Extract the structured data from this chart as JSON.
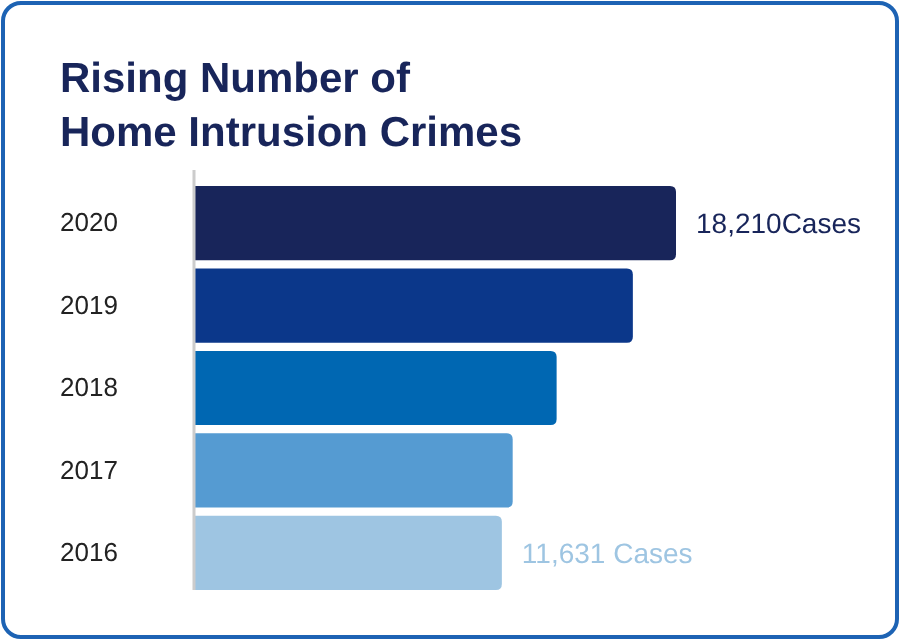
{
  "chart_data": {
    "type": "bar",
    "orientation": "horizontal",
    "title": "Rising Number of\nHome Intrusion Crimes",
    "categories": [
      "2020",
      "2019",
      "2018",
      "2017",
      "2016"
    ],
    "values": [
      18210,
      16580,
      13700,
      12040,
      11631
    ],
    "colors": [
      "#18255a",
      "#0b378a",
      "#0067b2",
      "#559bd2",
      "#9ec5e2"
    ],
    "value_labels": [
      "18,210Cases",
      null,
      null,
      null,
      "11,631 Cases"
    ],
    "tick_labels": "y"
  }
}
